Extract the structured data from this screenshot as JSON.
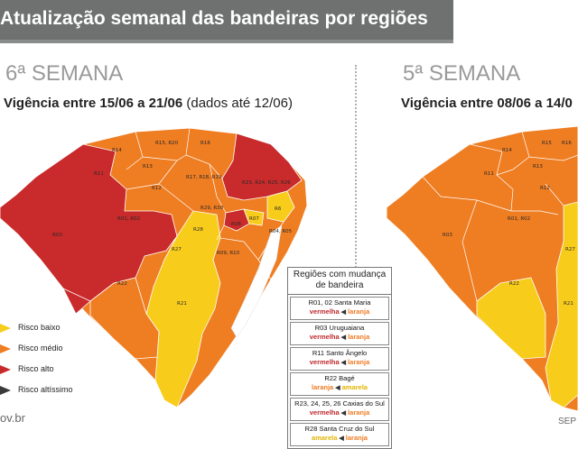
{
  "header": {
    "title": "Atualização semanal das bandeiras por regiões"
  },
  "colors": {
    "risco_baixo": "#f8cc1a",
    "risco_medio": "#ef7d22",
    "risco_alto": "#c92a2b",
    "risco_altissimo": "#3a3a3a",
    "header_bg": "#6e7170"
  },
  "left_panel": {
    "week": "6ª SEMANA",
    "validity_bold": "Vigência entre 15/06 a 21/06",
    "validity_note": "(dados até 12/06)",
    "regions": [
      "R14",
      "R15, R20",
      "R16",
      "R11",
      "R13",
      "R17, R18, R19",
      "R23, R24, R25, R26",
      "R12",
      "R29, R30",
      "R6",
      "R01, R02",
      "R07",
      "R08",
      "R03",
      "R28",
      "R27",
      "R04, R05",
      "R09, R10",
      "R22",
      "R21"
    ]
  },
  "right_panel": {
    "week": "5ª SEMANA",
    "validity_bold": "Vigência entre 08/06 a 14/0",
    "regions": [
      "R14",
      "R15",
      "R16",
      "R11",
      "R13",
      "R12",
      "R01, R02",
      "R03",
      "R27",
      "R22",
      "R21"
    ]
  },
  "legend": [
    {
      "label": "Risco baixo",
      "icon": "yellow-flag-icon",
      "color": "#f8cc1a"
    },
    {
      "label": "Risco médio",
      "icon": "orange-flag-icon",
      "color": "#ef7d22"
    },
    {
      "label": "Risco alto",
      "icon": "red-flag-icon",
      "color": "#c92a2b"
    },
    {
      "label": "Risco altíssimo",
      "icon": "black-flag-icon",
      "color": "#3a3a3a"
    }
  ],
  "changes_box": {
    "title": "Regiões com mudança de bandeira",
    "items": [
      {
        "name": "R01, 02 Santa Maria",
        "from": "vermelha",
        "to": "laranja"
      },
      {
        "name": "R03 Uruguaiana",
        "from": "vermelha",
        "to": "laranja"
      },
      {
        "name": "R11 Santo Ângelo",
        "from": "vermelha",
        "to": "laranja"
      },
      {
        "name": "R22 Bagé",
        "from": "laranja",
        "to": "amarela"
      },
      {
        "name": "R23, 24, 25, 26 Caxias do Sul",
        "from": "vermelha",
        "to": "laranja"
      },
      {
        "name": "R28 Santa Cruz do Sul",
        "from": "amarela",
        "to": "laranja"
      }
    ]
  },
  "footer": {
    "site": "ov.br",
    "right_text": "SEP"
  }
}
